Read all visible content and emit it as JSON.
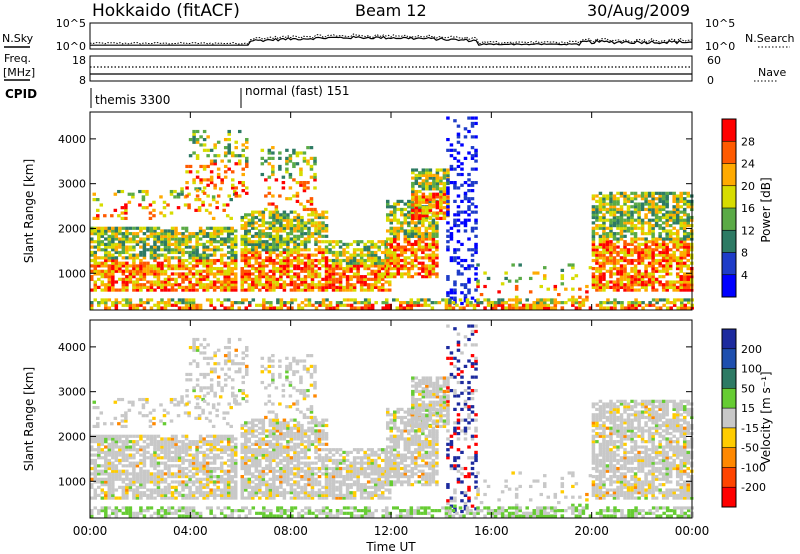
{
  "header": {
    "station": "Hokkaido (fitACF)",
    "beam": "Beam 12",
    "date": "30/Aug/2009"
  },
  "left_labels": {
    "nsky": "N.Sky",
    "freq_line1": "Freq.",
    "freq_line2": "[MHz]",
    "cpid": "CPID"
  },
  "right_labels": {
    "nsearch": "N.Search",
    "nave": "Nave"
  },
  "nsky_axis": {
    "top": "10^5",
    "bottom": "10^0"
  },
  "nsearch_axis": {
    "top": "10^5",
    "bottom": "10^0"
  },
  "freq_axis": {
    "top": "18",
    "bottom": "8"
  },
  "nave_axis": {
    "top": "60",
    "bottom": "0"
  },
  "cpid_segments": [
    {
      "label": "themis 3300",
      "start_hour": 0
    },
    {
      "label": "normal (fast) 151",
      "start_hour": 6.0
    }
  ],
  "chart_data": [
    {
      "type": "heatmap",
      "name": "power",
      "ylabel": "Slant Range [km]",
      "y_ticks": [
        1000,
        2000,
        3000,
        4000
      ],
      "ylim": [
        180,
        4600
      ],
      "colorbar_label": "Power [dB]",
      "colorbar_ticks": [
        "28",
        "24",
        "20",
        "16",
        "12",
        "8",
        "4"
      ],
      "colorbar_colors": [
        "#ff0000",
        "#ff5a00",
        "#ffaa00",
        "#d7dc00",
        "#5aaa46",
        "#2d7a64",
        "#1e3cc8",
        "#0000ff"
      ]
    },
    {
      "type": "heatmap",
      "name": "velocity",
      "ylabel": "Slant Range [km]",
      "y_ticks": [
        1000,
        2000,
        3000,
        4000
      ],
      "ylim": [
        180,
        4600
      ],
      "colorbar_label": "Velocity [m s⁻¹]",
      "colorbar_ticks": [
        "200",
        "100",
        "50",
        "15",
        "-15",
        "-50",
        "-100",
        "-200"
      ],
      "colorbar_colors": [
        "#1c2a9e",
        "#1e4fae",
        "#2d7a64",
        "#66cc33",
        "#c8c8c8",
        "#ffcc00",
        "#ff8800",
        "#ff4400",
        "#ff0000"
      ]
    }
  ],
  "time_axis": {
    "ticks": [
      "00:00",
      "04:00",
      "08:00",
      "12:00",
      "16:00",
      "20:00",
      "00:00"
    ],
    "label": "Time UT"
  }
}
